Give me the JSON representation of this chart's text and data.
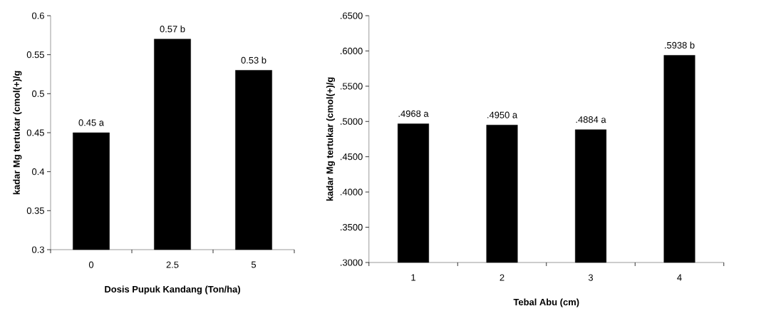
{
  "chart_data": [
    {
      "type": "bar",
      "xlabel": "Dosis Pupuk Kandang (Ton/ha)",
      "ylabel": "kadar  Mg tertukar  (cmol(+)/g",
      "categories": [
        "0",
        "2.5",
        "5"
      ],
      "values": [
        0.45,
        0.57,
        0.53
      ],
      "value_labels": [
        "0.45 a",
        "0.57 b",
        "0.53 b"
      ],
      "color": "#000000",
      "ylim": [
        0.3,
        0.6
      ],
      "yticks": [
        0.3,
        0.35,
        0.4,
        0.45,
        0.5,
        0.55,
        0.6
      ]
    },
    {
      "type": "bar",
      "xlabel": "Tebal Abu (cm)",
      "ylabel": "kadar Mg tertukar  (cmol(+)/g",
      "categories": [
        "1",
        "2",
        "3",
        "4"
      ],
      "values": [
        0.4968,
        0.495,
        0.4884,
        0.5938
      ],
      "value_labels": [
        ".4968 a",
        ".4950 a",
        ".4884 a",
        ".5938 b"
      ],
      "color": "#000000",
      "ylim": [
        0.3,
        0.65
      ],
      "yticks": [
        {
          "value": 0.3,
          "label": ".3000"
        },
        {
          "value": 0.35,
          "label": ".3500"
        },
        {
          "value": 0.4,
          "label": ".4000"
        },
        {
          "value": 0.45,
          "label": ".4500"
        },
        {
          "value": 0.5,
          "label": ".5000"
        },
        {
          "value": 0.55,
          "label": ".5500"
        },
        {
          "value": 0.6,
          "label": ".6000"
        },
        {
          "value": 0.65,
          "label": ".6500"
        }
      ]
    }
  ]
}
